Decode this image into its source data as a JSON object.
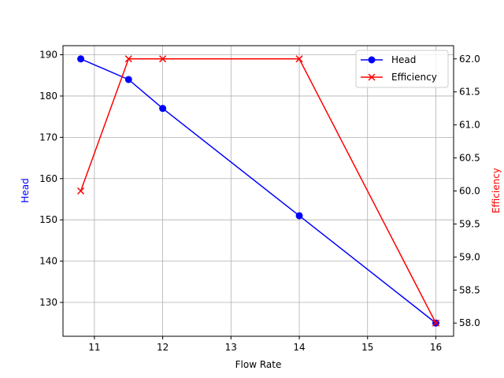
{
  "chart_data": {
    "type": "line",
    "title": "",
    "xlabel": "Flow Rate",
    "ylabel": "Head",
    "ylabel_right": "Efficiency",
    "x": [
      10.8,
      11.5,
      12,
      14,
      16
    ],
    "series": [
      {
        "name": "Head",
        "axis": "left",
        "color": "#0000ff",
        "marker": "o",
        "values": [
          189,
          184,
          177,
          151,
          125
        ]
      },
      {
        "name": "Efficiency",
        "axis": "right",
        "color": "#ff0000",
        "marker": "x",
        "values": [
          60.0,
          62.0,
          62.0,
          62.0,
          58.0
        ]
      }
    ],
    "xlim": [
      10.54,
      16.26
    ],
    "ylim": [
      121.8,
      192.2
    ],
    "ylim_right": [
      57.8,
      62.2
    ],
    "xticks": [
      "11",
      "12",
      "13",
      "14",
      "15",
      "16"
    ],
    "yticks": [
      "130",
      "140",
      "150",
      "160",
      "170",
      "180",
      "190"
    ],
    "yticks_right": [
      "58.0",
      "58.5",
      "59.0",
      "59.5",
      "60.0",
      "60.5",
      "61.0",
      "61.5",
      "62.0"
    ],
    "grid": true,
    "legend_position": "upper right"
  }
}
